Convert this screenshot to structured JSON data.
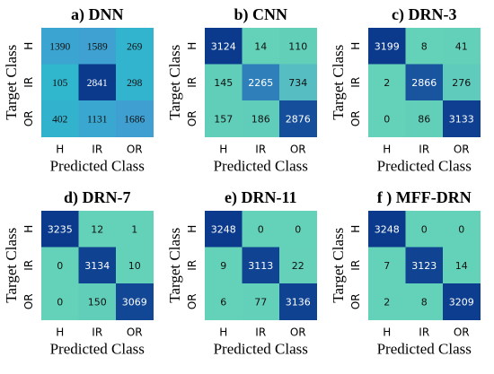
{
  "chart_data": [
    {
      "type": "heatmap",
      "title": "a) DNN",
      "xlabel": "Predicted Class",
      "ylabel": "Target Class",
      "x_categories": [
        "H",
        "IR",
        "OR"
      ],
      "y_categories": [
        "H",
        "IR",
        "OR"
      ],
      "values": [
        [
          1390,
          1589,
          269
        ],
        [
          105,
          2841,
          298
        ],
        [
          402,
          1131,
          1686
        ]
      ]
    },
    {
      "type": "heatmap",
      "title": "b) CNN",
      "xlabel": "Predicted Class",
      "ylabel": "Target Class",
      "x_categories": [
        "H",
        "IR",
        "OR"
      ],
      "y_categories": [
        "H",
        "IR",
        "OR"
      ],
      "values": [
        [
          3124,
          14,
          110
        ],
        [
          145,
          2265,
          734
        ],
        [
          157,
          186,
          2876
        ]
      ]
    },
    {
      "type": "heatmap",
      "title": "c) DRN-3",
      "xlabel": "Predicted Class",
      "ylabel": "Target Class",
      "x_categories": [
        "H",
        "IR",
        "OR"
      ],
      "y_categories": [
        "H",
        "IR",
        "OR"
      ],
      "values": [
        [
          3199,
          8,
          41
        ],
        [
          2,
          2866,
          276
        ],
        [
          0,
          86,
          3133
        ]
      ]
    },
    {
      "type": "heatmap",
      "title": "d) DRN-7",
      "xlabel": "Predicted Class",
      "ylabel": "Target Class",
      "x_categories": [
        "H",
        "IR",
        "OR"
      ],
      "y_categories": [
        "H",
        "IR",
        "OR"
      ],
      "values": [
        [
          3235,
          12,
          1
        ],
        [
          0,
          3134,
          10
        ],
        [
          0,
          150,
          3069
        ]
      ]
    },
    {
      "type": "heatmap",
      "title": "e) DRN-11",
      "xlabel": "Predicted Class",
      "ylabel": "Target Class",
      "x_categories": [
        "H",
        "IR",
        "OR"
      ],
      "y_categories": [
        "H",
        "IR",
        "OR"
      ],
      "values": [
        [
          3248,
          0,
          0
        ],
        [
          9,
          3113,
          22
        ],
        [
          6,
          77,
          3136
        ]
      ]
    },
    {
      "type": "heatmap",
      "title": "f ) MFF-DRN",
      "xlabel": "Predicted Class",
      "ylabel": "Target Class",
      "x_categories": [
        "H",
        "IR",
        "OR"
      ],
      "y_categories": [
        "H",
        "IR",
        "OR"
      ],
      "values": [
        [
          3248,
          0,
          0
        ],
        [
          7,
          3123,
          14
        ],
        [
          2,
          8,
          3209
        ]
      ]
    }
  ],
  "colors": {
    "low": "#64d2b8",
    "mid": "#3f9fd1",
    "high": "#0b3a8c",
    "dnn_low": "#2fb8cd"
  }
}
